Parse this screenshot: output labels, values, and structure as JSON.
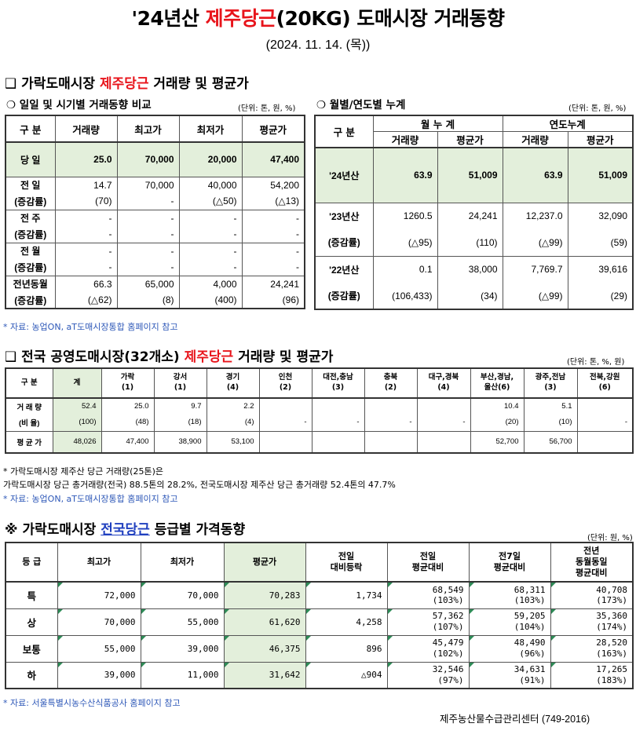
{
  "header": {
    "title_prefix": "'24년산 ",
    "title_highlight": "제주당근",
    "title_suffix": "(20KG) 도매시장 거래동향",
    "date": "(2024. 11. 14. (목))"
  },
  "section1": {
    "bullet": "❑",
    "title_prefix": " 가락도매시장 ",
    "title_highlight": "제주당근",
    "title_suffix": " 거래량 및 평균가",
    "daily": {
      "heading": "❍ 일일 및 시기별 거래동향 비교",
      "unit": "(단위: 톤, 원, %)",
      "headers": [
        "구  분",
        "거래량",
        "최고가",
        "최저가",
        "평균가"
      ],
      "today": {
        "label": "당  일",
        "values": [
          "25.0",
          "70,000",
          "20,000",
          "47,400"
        ]
      },
      "rows": [
        {
          "label": "전  일",
          "values": [
            "14.7",
            "70,000",
            "40,000",
            "54,200"
          ],
          "sub_label": "(증감률)",
          "sub": [
            "(70)",
            "-",
            "(△50)",
            "(△13)"
          ]
        },
        {
          "label": "전  주",
          "values": [
            "-",
            "-",
            "-",
            "-"
          ],
          "sub_label": "(증감률)",
          "sub": [
            "-",
            "-",
            "-",
            "-"
          ]
        },
        {
          "label": "전  월",
          "values": [
            "-",
            "-",
            "-",
            "-"
          ],
          "sub_label": "(증감률)",
          "sub": [
            "-",
            "-",
            "-",
            "-"
          ]
        },
        {
          "label": "전년동월",
          "values": [
            "66.3",
            "65,000",
            "4,000",
            "24,241"
          ],
          "sub_label": "(증감률)",
          "sub": [
            "(△62)",
            "(8)",
            "(400)",
            "(96)"
          ]
        }
      ]
    },
    "cumulative": {
      "heading": "❍ 월별/연도별 누계",
      "unit": "(단위: 톤, 원, %)",
      "header_label": "구  분",
      "group1": "월 누 계",
      "group2": "연도누계",
      "sub_headers": [
        "거래량",
        "평균가",
        "거래량",
        "평균가"
      ],
      "current": {
        "label": "'24년산",
        "values": [
          "63.9",
          "51,009",
          "63.9",
          "51,009"
        ]
      },
      "rows": [
        {
          "label": "'23년산",
          "values": [
            "1260.5",
            "24,241",
            "12,237.0",
            "32,090"
          ],
          "sub_label": "(증감률)",
          "sub": [
            "(△95)",
            "(110)",
            "(△99)",
            "(59)"
          ]
        },
        {
          "label": "'22년산",
          "values": [
            "0.1",
            "38,000",
            "7,769.7",
            "39,616"
          ],
          "sub_label": "(증감률)",
          "sub": [
            "(106,433)",
            "(34)",
            "(△99)",
            "(29)"
          ]
        }
      ]
    },
    "source": "* 자료: 농업ON, aT도매시장통합 홈페이지 참고"
  },
  "section2": {
    "bullet": "❑",
    "title_prefix": " 전국 공영도매시장(32개소) ",
    "title_highlight": "제주당근",
    "title_suffix": " 거래량 및 평균가",
    "unit": "(단위: 톤, %, 원)",
    "headers": [
      "구  분",
      "계",
      "가락\n(1)",
      "강서\n(1)",
      "경기\n(4)",
      "인천\n(2)",
      "대전,충남\n(3)",
      "충북\n(2)",
      "대구,경북\n(4)",
      "부산,경남,\n울산(6)",
      "광주,전남\n(3)",
      "전북,강원\n(6)"
    ],
    "volume_label": "거 래 량",
    "volume": [
      "52.4",
      "25.0",
      "9.7",
      "2.2",
      "",
      "",
      "",
      "",
      "10.4",
      "5.1",
      ""
    ],
    "ratio_label": "(비 율)",
    "ratio": [
      "(100)",
      "(48)",
      "(18)",
      "(4)",
      "-",
      "-",
      "-",
      "-",
      "(20)",
      "(10)",
      "-"
    ],
    "avg_label": "평 균 가",
    "avg": [
      "48,026",
      "47,400",
      "38,900",
      "53,100",
      "",
      "",
      "",
      "",
      "52,700",
      "56,700",
      ""
    ],
    "note1": "* 가락도매시장 제주산 당근 거래량(25톤)은",
    "note2": "   가락도매시장 당근 총거래량(전국) 88.5톤의 28.2%, 전국도매시장 제주산 당근 총거래량 52.4톤의 47.7%",
    "source": "* 자료: 농업ON, aT도매시장통합 홈페이지 참고"
  },
  "section3": {
    "bullet": "※",
    "title_prefix": " 가락도매시장 ",
    "title_highlight": "전국당근",
    "title_suffix": " 등급별 가격동향",
    "unit": "(단위: 원, %)",
    "headers": [
      "등  급",
      "최고가",
      "최저가",
      "평균가",
      "전일\n대비등락",
      "전일\n평균대비",
      "전7일\n평균대비",
      "전년\n동월동일\n평균대비"
    ],
    "rows": [
      {
        "grade": "특",
        "max": "72,000",
        "min": "70,000",
        "avg": "70,283",
        "change": "1,734",
        "prev_day": "68,549",
        "prev_day_pct": "(103%)",
        "prev7": "68,311",
        "prev7_pct": "(103%)",
        "prev_year": "40,708",
        "prev_year_pct": "(173%)"
      },
      {
        "grade": "상",
        "max": "70,000",
        "min": "55,000",
        "avg": "61,620",
        "change": "4,258",
        "prev_day": "57,362",
        "prev_day_pct": "(107%)",
        "prev7": "59,205",
        "prev7_pct": "(104%)",
        "prev_year": "35,360",
        "prev_year_pct": "(174%)"
      },
      {
        "grade": "보통",
        "max": "55,000",
        "min": "39,000",
        "avg": "46,375",
        "change": "896",
        "prev_day": "45,479",
        "prev_day_pct": "(102%)",
        "prev7": "48,490",
        "prev7_pct": "(96%)",
        "prev_year": "28,520",
        "prev_year_pct": "(163%)"
      },
      {
        "grade": "하",
        "max": "39,000",
        "min": "11,000",
        "avg": "31,642",
        "change": "△904",
        "prev_day": "32,546",
        "prev_day_pct": "(97%)",
        "prev7": "34,631",
        "prev7_pct": "(91%)",
        "prev_year": "17,265",
        "prev_year_pct": "(183%)"
      }
    ],
    "source": "* 자료: 서울특별시농수산식품공사 홈페이지 참고"
  },
  "footer": "제주농산물수급관리센터 (749-2016)"
}
